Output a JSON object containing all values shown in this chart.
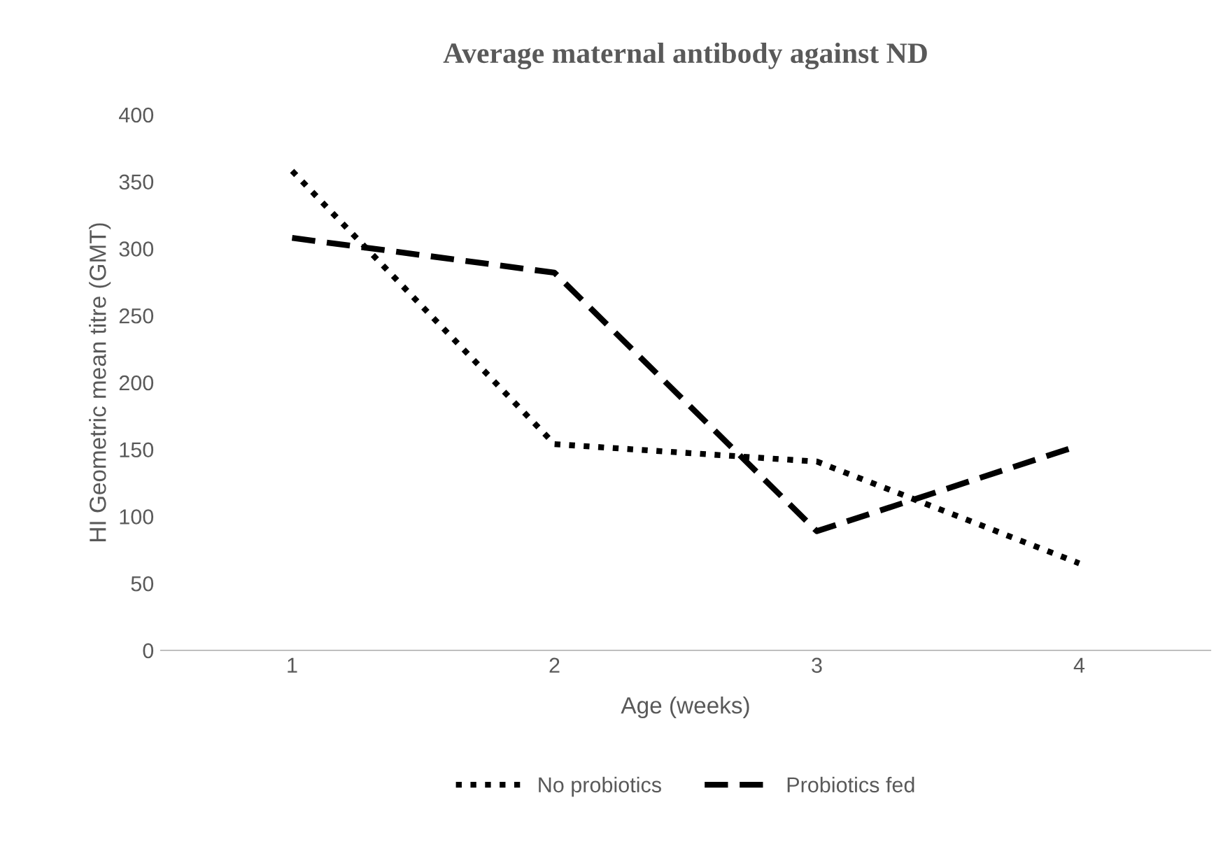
{
  "chart_data": {
    "type": "line",
    "title": "Average maternal antibody against ND",
    "xlabel": "Age (weeks)",
    "ylabel": "HI Geometric mean titre (GMT)",
    "categories": [
      "1",
      "2",
      "3",
      "4"
    ],
    "series": [
      {
        "name": "No probiotics",
        "color": "#000000",
        "values": [
          358,
          154,
          141,
          65
        ],
        "line_style": "dotted"
      },
      {
        "name": "Probiotics fed",
        "color": "#000000",
        "values": [
          308,
          282,
          89,
          153
        ],
        "line_style": "dashed"
      }
    ],
    "ylim": [
      0,
      400
    ],
    "yticks": [
      0,
      50,
      100,
      150,
      200,
      250,
      300,
      350,
      400
    ],
    "grid": false,
    "legend": "bottom",
    "marker": "none"
  }
}
